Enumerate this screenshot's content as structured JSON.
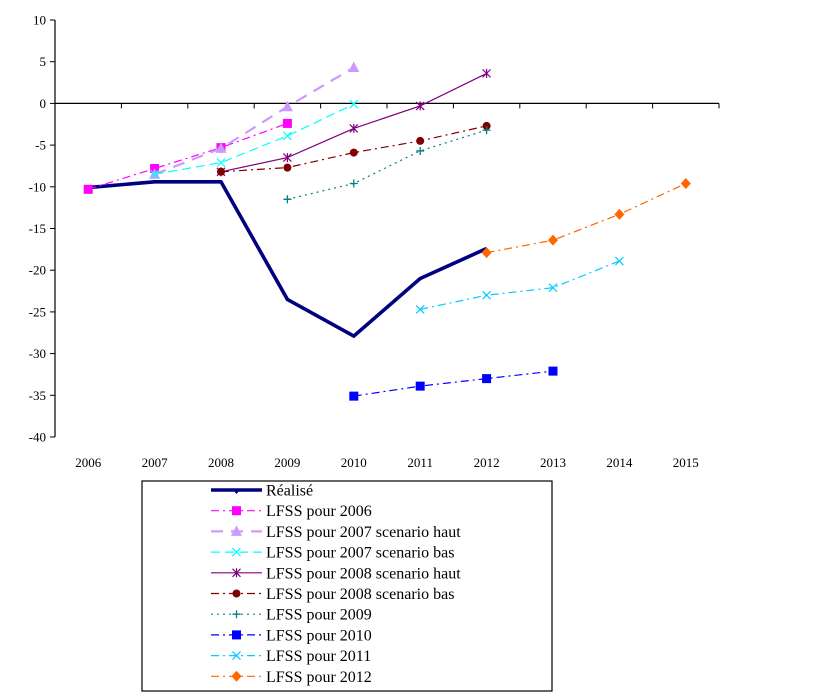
{
  "chart_data": {
    "type": "line",
    "title": "",
    "xlabel": "",
    "ylabel": "",
    "categories": [
      "2006",
      "2007",
      "2008",
      "2009",
      "2010",
      "2011",
      "2012",
      "2013",
      "2014",
      "2015"
    ],
    "ylim": [
      -40,
      10
    ],
    "yticks": [
      10,
      5,
      0,
      -5,
      -10,
      -15,
      -20,
      -25,
      -30,
      -35,
      -40
    ],
    "grid": false,
    "legend_position": "bottom-center",
    "series": [
      {
        "name": "Réalisé",
        "color": "#000080",
        "dash": "solid",
        "marker": "none",
        "width": "thick",
        "values": [
          -10.1,
          -9.4,
          -9.4,
          -23.5,
          -27.9,
          -21.0,
          -17.4,
          null,
          null,
          null
        ]
      },
      {
        "name": "LFSS pour 2006",
        "color": "#FF00FF",
        "dash": "dashdot",
        "marker": "square",
        "values": [
          -10.3,
          -7.8,
          -5.3,
          -2.4,
          null,
          null,
          null,
          null,
          null,
          null
        ]
      },
      {
        "name": "LFSS pour 2007 scenario haut",
        "color": "#CC99FF",
        "dash": "longdash",
        "marker": "triangle",
        "width": "medium",
        "values": [
          null,
          -8.5,
          -5.4,
          -0.4,
          4.3,
          null,
          null,
          null,
          null,
          null
        ]
      },
      {
        "name": "LFSS pour 2007 scenario bas",
        "color": "#00FFFF",
        "dash": "dash",
        "marker": "x",
        "values": [
          null,
          -8.5,
          -7.1,
          -3.9,
          -0.1,
          null,
          null,
          null,
          null,
          null
        ]
      },
      {
        "name": "LFSS pour 2008 scenario haut",
        "color": "#800080",
        "dash": "solid",
        "marker": "star",
        "values": [
          null,
          null,
          -8.2,
          -6.5,
          -3.0,
          -0.3,
          3.6,
          null,
          null,
          null
        ]
      },
      {
        "name": "LFSS pour 2008 scenario bas",
        "color": "#800000",
        "dash": "dashdot",
        "marker": "circle",
        "values": [
          null,
          null,
          -8.2,
          -7.7,
          -5.9,
          -4.5,
          -2.7,
          null,
          null,
          null
        ]
      },
      {
        "name": "LFSS pour 2009",
        "color": "#008080",
        "dash": "dot",
        "marker": "plus",
        "values": [
          null,
          null,
          null,
          -11.5,
          -9.6,
          -5.7,
          -3.2,
          null,
          null,
          null
        ]
      },
      {
        "name": "LFSS pour 2010",
        "color": "#0000FF",
        "dash": "dashdot",
        "marker": "square",
        "values": [
          null,
          null,
          null,
          null,
          -35.1,
          -33.9,
          -33.0,
          -32.1,
          null,
          null
        ]
      },
      {
        "name": "LFSS pour 2011",
        "color": "#00CCFF",
        "dash": "dashdot",
        "marker": "x",
        "values": [
          null,
          null,
          null,
          null,
          null,
          -24.7,
          -23.0,
          -22.1,
          -18.9,
          null
        ]
      },
      {
        "name": "LFSS pour 2012",
        "color": "#FF6600",
        "dash": "dashdot",
        "marker": "diamond",
        "values": [
          null,
          null,
          null,
          null,
          null,
          null,
          -17.9,
          -16.4,
          -13.3,
          -9.6
        ]
      }
    ]
  }
}
